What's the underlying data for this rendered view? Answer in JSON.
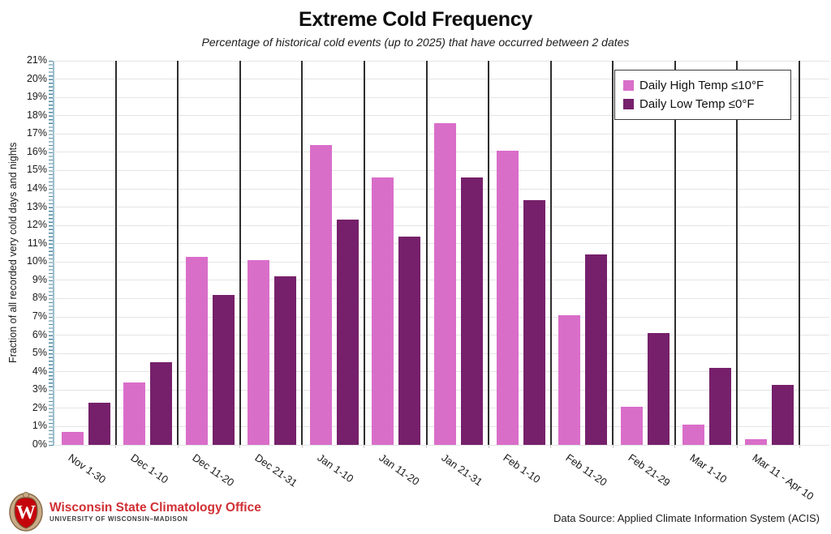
{
  "title": "Extreme Cold Frequency",
  "subtitle": "Percentage of historical cold events (up to 2025) that have occurred between 2 dates",
  "chart_data": {
    "type": "bar",
    "categories": [
      "Nov 1-30",
      "Dec 1-10",
      "Dec 11-20",
      "Dec 21-31",
      "Jan 1-10",
      "Jan 11-20",
      "Jan 21-31",
      "Feb 1-10",
      "Feb 11-20",
      "Feb 21-29",
      "Mar 1-10",
      "Mar 11 - Apr 10"
    ],
    "series": [
      {
        "name": "Daily High Temp ≤10°F",
        "color": "#d96ec9",
        "values": [
          0.7,
          3.4,
          10.3,
          10.1,
          16.4,
          14.6,
          17.6,
          16.1,
          7.1,
          2.1,
          1.1,
          0.3
        ]
      },
      {
        "name": "Daily Low Temp ≤0°F",
        "color": "#76206b",
        "values": [
          2.3,
          4.5,
          8.2,
          9.2,
          12.3,
          11.4,
          14.6,
          13.4,
          10.4,
          6.1,
          4.2,
          3.3
        ]
      }
    ],
    "xlabel": "",
    "ylabel": "Fraction of all recorded very cold days and nights",
    "ylim": [
      0,
      21
    ],
    "ytick_step": 1,
    "ytick_suffix": "%",
    "grid": true,
    "legend_position": "top-right",
    "grid_color": "#e4e4e4",
    "separator_color": "#2e2e2e",
    "axis_color": "#4e87a0"
  },
  "footer": {
    "org_name": "Wisconsin State Climatology Office",
    "org_sub": "UNIVERSITY OF WISCONSIN–MADISON",
    "data_source": "Data Source: Applied Climate Information System (ACIS)",
    "brand_red": "#d12f34",
    "crest_icon": "uw-crest-icon"
  }
}
